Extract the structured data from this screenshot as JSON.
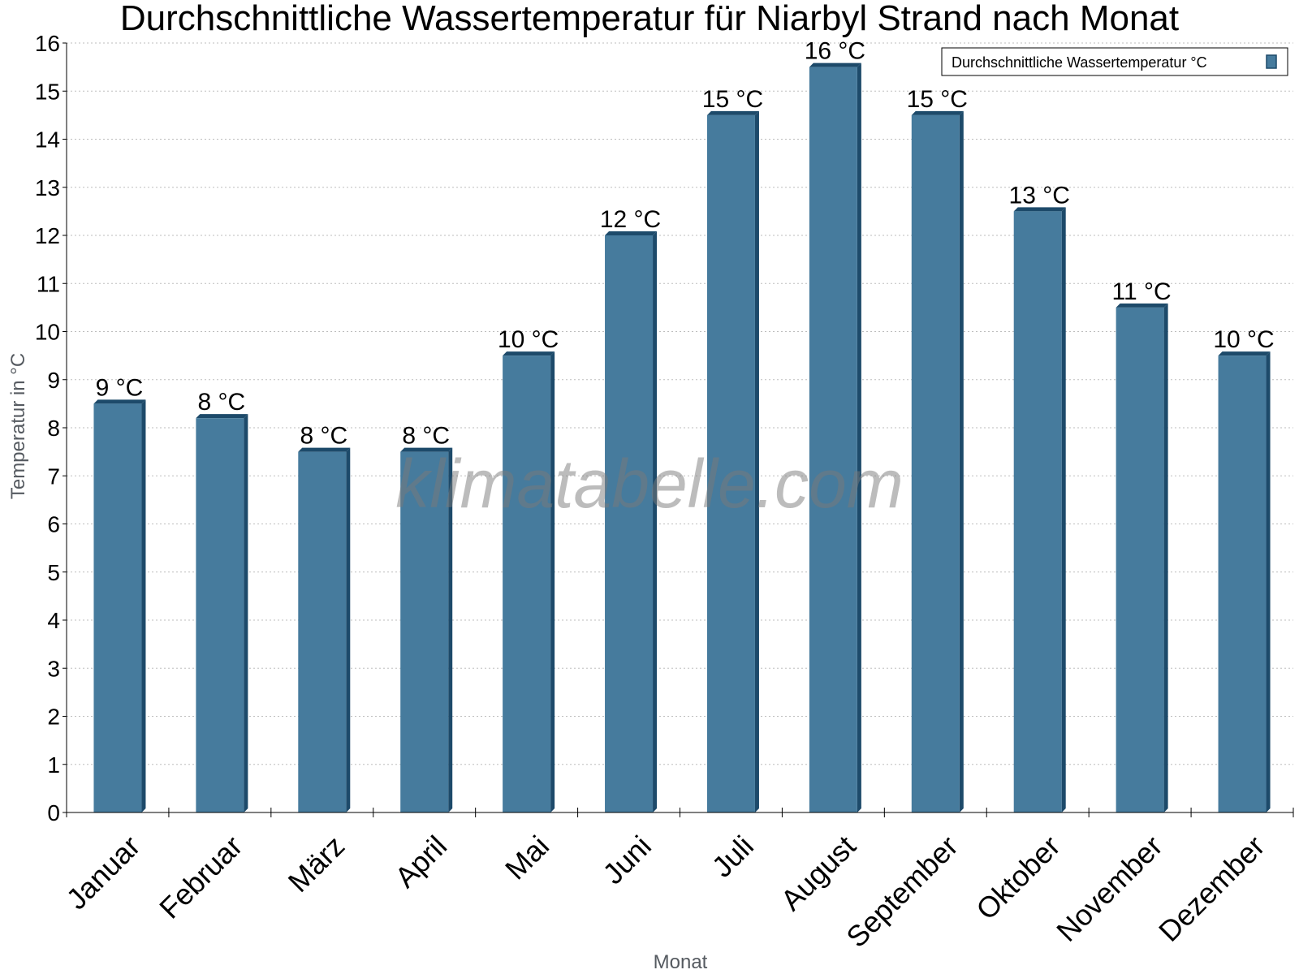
{
  "chart_data": {
    "type": "bar",
    "title": "Durchschnittliche Wassertemperatur für Niarbyl Strand nach Monat",
    "xlabel": "Monat",
    "ylabel": "Temperatur in °C",
    "categories": [
      "Januar",
      "Februar",
      "März",
      "April",
      "Mai",
      "Juni",
      "Juli",
      "August",
      "September",
      "Oktober",
      "November",
      "Dezember"
    ],
    "series": [
      {
        "name": "Durchschnittliche Wassertemperatur °C",
        "values": [
          8.5,
          8.2,
          7.5,
          7.5,
          9.5,
          12.0,
          14.5,
          15.5,
          14.5,
          12.5,
          10.5,
          9.5
        ],
        "labels": [
          "9 °C",
          "8 °C",
          "8 °C",
          "8 °C",
          "10 °C",
          "12 °C",
          "15 °C",
          "16 °C",
          "15 °C",
          "13 °C",
          "11 °C",
          "10 °C"
        ]
      }
    ],
    "ylim": [
      0,
      16
    ],
    "yticks": [
      0,
      1,
      2,
      3,
      4,
      5,
      6,
      7,
      8,
      9,
      10,
      11,
      12,
      13,
      14,
      15,
      16
    ],
    "grid": true,
    "legend_position": "top-right",
    "bar_color": "#467b9d",
    "bar_edge_color": "#1d4a6a"
  },
  "watermark": "klimatabelle.com"
}
